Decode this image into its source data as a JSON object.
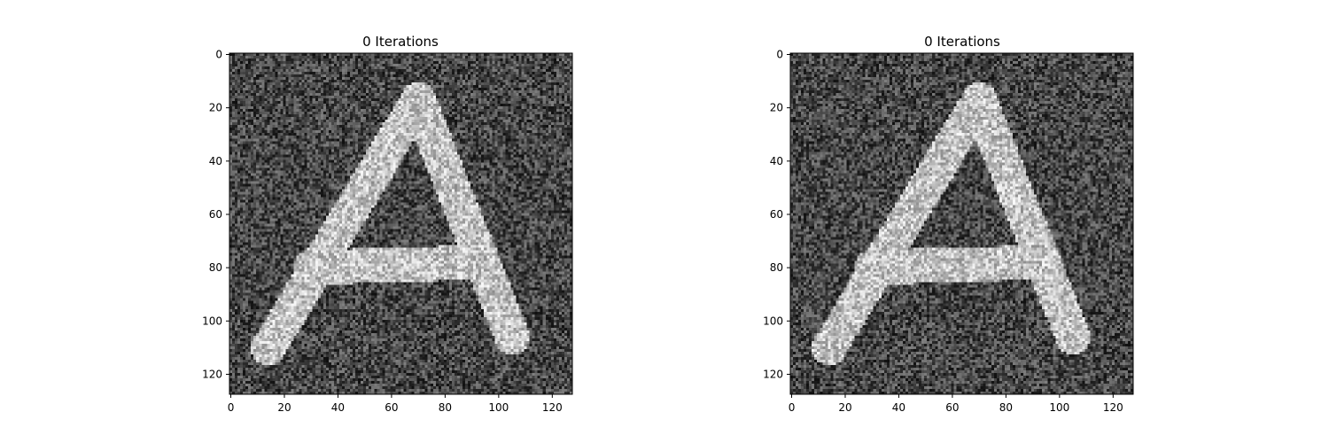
{
  "chart_data": [
    {
      "type": "heatmap",
      "title": "0 Iterations",
      "colormap": "gray",
      "image_size": [
        128,
        128
      ],
      "xlim": [
        -0.5,
        127.5
      ],
      "ylim": [
        127.5,
        -0.5
      ],
      "y_axis_inverted": true,
      "xticks": [
        0,
        20,
        40,
        60,
        80,
        100,
        120
      ],
      "yticks": [
        0,
        20,
        40,
        60,
        80,
        100,
        120
      ],
      "grid": false,
      "background_intensity": 0.28,
      "foreground_intensity": 0.76,
      "noise_amplitude": 0.22,
      "depicted_shape": "letter A",
      "stroke_width": 13,
      "strokes": [
        {
          "from": [
            14,
            110
          ],
          "to": [
            70,
            17
          ]
        },
        {
          "from": [
            70,
            17
          ],
          "to": [
            105,
            106
          ]
        },
        {
          "from": [
            30,
            80
          ],
          "to": [
            93,
            78
          ]
        }
      ],
      "stroke_centerline": [
        [
          14,
          110
        ],
        [
          70,
          17
        ],
        [
          105,
          106
        ]
      ]
    },
    {
      "type": "heatmap",
      "title": "0 Iterations",
      "colormap": "gray",
      "image_size": [
        128,
        128
      ],
      "xlim": [
        -0.5,
        127.5
      ],
      "ylim": [
        127.5,
        -0.5
      ],
      "y_axis_inverted": true,
      "xticks": [
        0,
        20,
        40,
        60,
        80,
        100,
        120
      ],
      "yticks": [
        0,
        20,
        40,
        60,
        80,
        100,
        120
      ],
      "grid": false,
      "background_intensity": 0.28,
      "foreground_intensity": 0.76,
      "noise_amplitude": 0.22,
      "depicted_shape": "letter A",
      "stroke_width": 13,
      "strokes": [
        {
          "from": [
            14,
            110
          ],
          "to": [
            70,
            17
          ]
        },
        {
          "from": [
            70,
            17
          ],
          "to": [
            105,
            106
          ]
        },
        {
          "from": [
            30,
            80
          ],
          "to": [
            93,
            78
          ]
        }
      ],
      "stroke_centerline": [
        [
          14,
          110
        ],
        [
          70,
          17
        ],
        [
          105,
          106
        ]
      ]
    }
  ]
}
